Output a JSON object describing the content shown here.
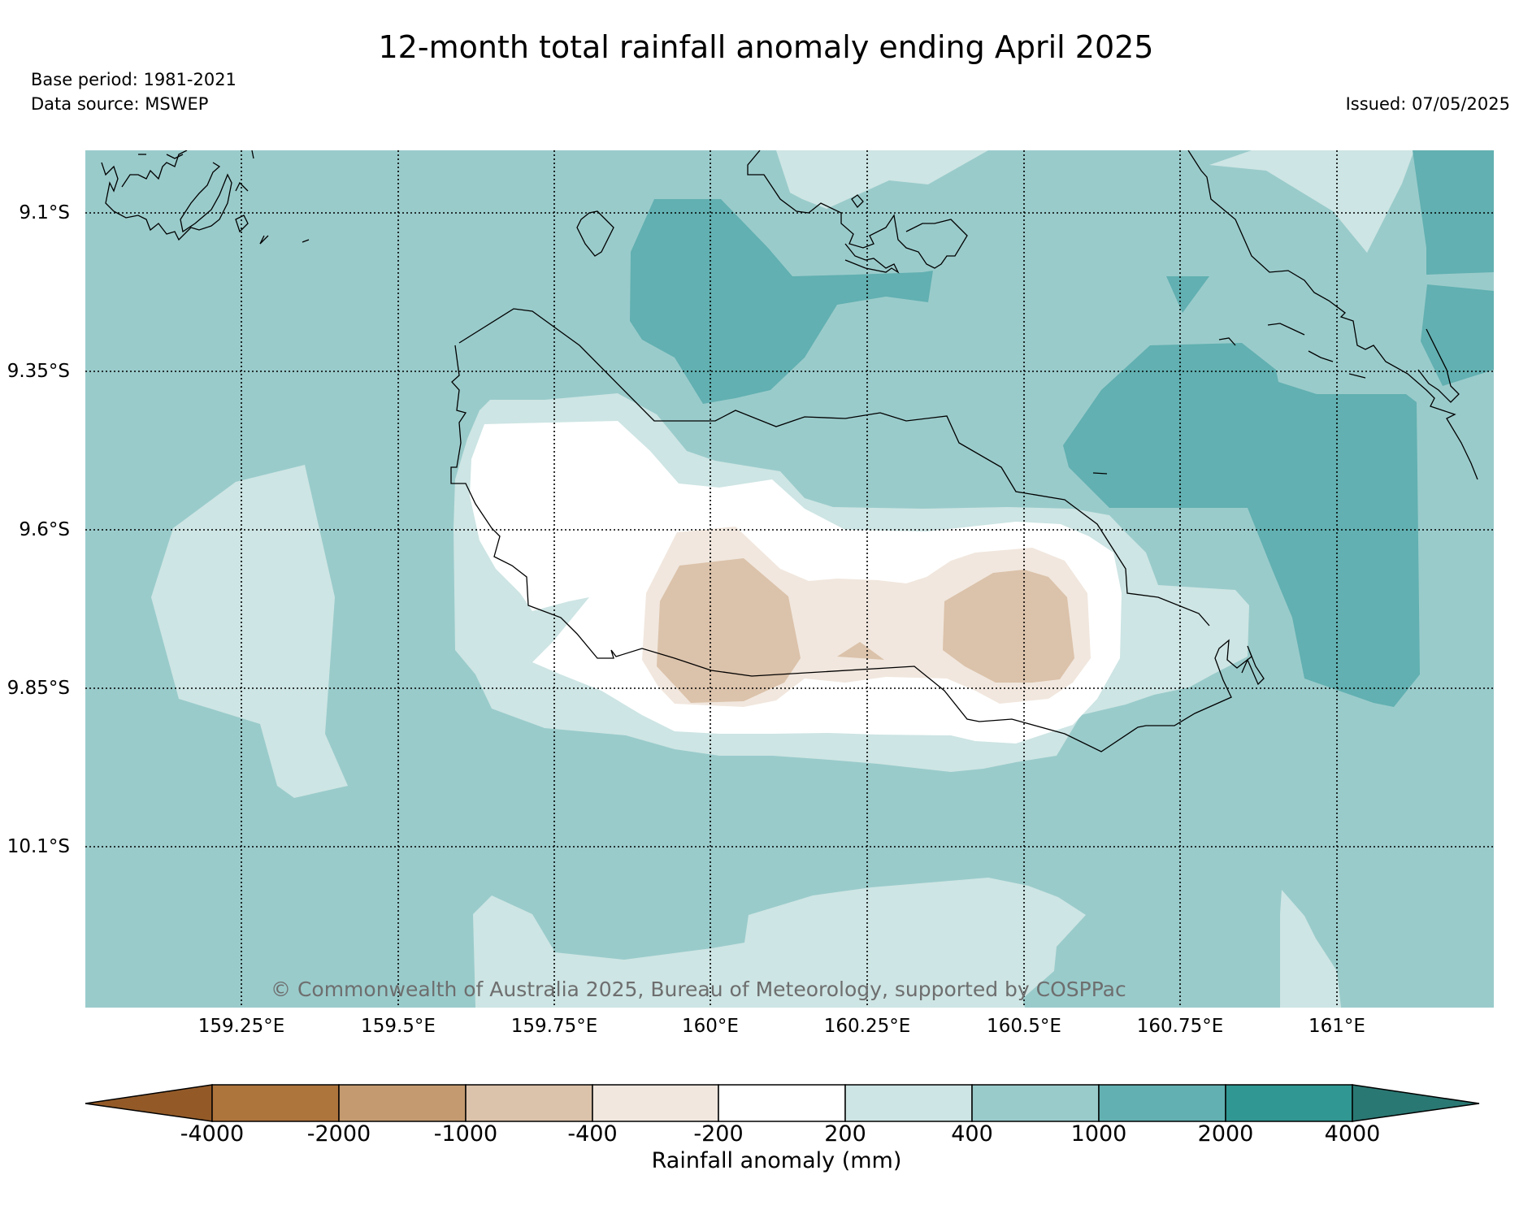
{
  "header": {
    "title": "12-month total rainfall anomaly ending April 2025",
    "base_period": "Base period: 1981-2021",
    "data_source": "Data source: MSWEP",
    "issued": "Issued: 07/05/2025"
  },
  "map": {
    "lat_labels": [
      "9.1°S",
      "9.35°S",
      "9.6°S",
      "9.85°S",
      "10.1°S"
    ],
    "lon_labels": [
      "159.25°E",
      "159.5°E",
      "159.75°E",
      "160°E",
      "160.25°E",
      "160.5°E",
      "160.75°E",
      "161°E"
    ],
    "copyright": "© Commonwealth of Australia 2025, Bureau of Meteorology, supported by COSPPac"
  },
  "colorbar": {
    "label": "Rainfall anomaly (mm)",
    "ticks": [
      "-4000",
      "-2000",
      "-1000",
      "-400",
      "-200",
      "200",
      "400",
      "1000",
      "2000",
      "4000"
    ],
    "colors": [
      "#935a28",
      "#ad743c",
      "#c49b70",
      "#dbc2aa",
      "#f1e7de",
      "#ffffff",
      "#cde5e4",
      "#9acbcb",
      "#62b0b1",
      "#309792",
      "#2a7873"
    ]
  },
  "legend_colors": {
    "class_200_400": "#cde5e4",
    "class_400_1000": "#9acbcb",
    "class_1000_2000": "#62b0b1",
    "class_minus400_minus200": "#f1e7de",
    "class_minus1000_minus400": "#dbc2aa",
    "no_change": "#ffffff"
  }
}
